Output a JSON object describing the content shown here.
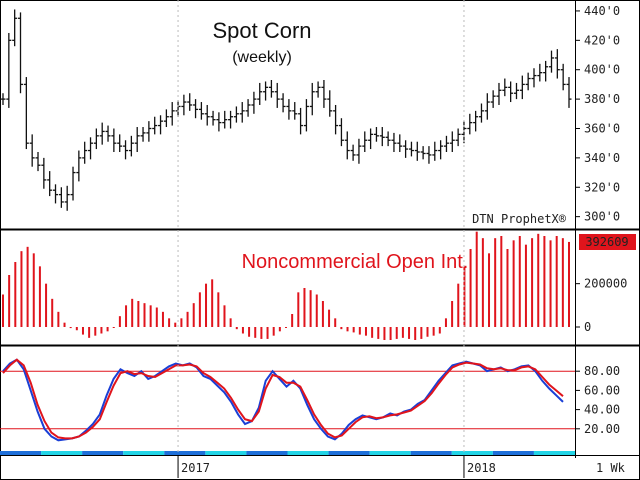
{
  "chart_data": [
    {
      "type": "ohlc",
      "title": "Spot Corn",
      "subtitle": "(weekly)",
      "watermark": "DTN ProphetX®",
      "ylim": [
        295,
        442
      ],
      "y_ticks": [
        {
          "value": 300,
          "label": "300'0"
        },
        {
          "value": 320,
          "label": "320'0"
        },
        {
          "value": 340,
          "label": "340'0"
        },
        {
          "value": 360,
          "label": "360'0"
        },
        {
          "value": 380,
          "label": "380'0"
        },
        {
          "value": 400,
          "label": "400'0"
        },
        {
          "value": 420,
          "label": "420'0"
        },
        {
          "value": 440,
          "label": "440'0"
        }
      ],
      "close_series": [
        380,
        420,
        435,
        390,
        350,
        340,
        335,
        325,
        318,
        315,
        310,
        315,
        330,
        340,
        345,
        350,
        355,
        358,
        355,
        350,
        348,
        345,
        350,
        355,
        357,
        360,
        362,
        365,
        368,
        372,
        375,
        378,
        376,
        373,
        370,
        368,
        366,
        364,
        366,
        368,
        370,
        372,
        376,
        380,
        385,
        388,
        385,
        380,
        375,
        372,
        370,
        362,
        375,
        385,
        388,
        380,
        372,
        362,
        352,
        345,
        342,
        348,
        352,
        356,
        355,
        354,
        352,
        350,
        348,
        346,
        345,
        344,
        343,
        342,
        345,
        348,
        350,
        352,
        356,
        360,
        364,
        368,
        372,
        378,
        382,
        386,
        388,
        384,
        386,
        390,
        394,
        396,
        398,
        402,
        408,
        400,
        390,
        380
      ],
      "color": "#111111"
    },
    {
      "type": "bar",
      "label": "Noncommercial Open Int.",
      "last_value_label": "392609",
      "ylim": [
        -60000,
        420000
      ],
      "y_ticks": [
        {
          "value": 200000,
          "label": "200000"
        },
        {
          "value": 0,
          "label": "0"
        }
      ],
      "values": [
        150000,
        240000,
        300000,
        350000,
        370000,
        340000,
        280000,
        200000,
        130000,
        70000,
        20000,
        -5000,
        -15000,
        -35000,
        -50000,
        -40000,
        -30000,
        -20000,
        0,
        50000,
        100000,
        130000,
        120000,
        110000,
        100000,
        90000,
        70000,
        40000,
        20000,
        40000,
        70000,
        110000,
        160000,
        200000,
        220000,
        160000,
        100000,
        40000,
        -10000,
        -30000,
        -45000,
        -50000,
        -55000,
        -55000,
        -40000,
        -20000,
        0,
        60000,
        160000,
        180000,
        170000,
        150000,
        120000,
        80000,
        40000,
        -10000,
        -20000,
        -25000,
        -35000,
        -40000,
        -50000,
        -55000,
        -60000,
        -60000,
        -55000,
        -50000,
        -55000,
        -60000,
        -55000,
        -45000,
        -40000,
        -30000,
        40000,
        120000,
        200000,
        280000,
        360000,
        440000,
        410000,
        340000,
        410000,
        420000,
        360000,
        400000,
        420000,
        380000,
        410000,
        430000,
        420000,
        400000,
        420000,
        410000,
        392609
      ],
      "color": "#e0141c"
    },
    {
      "type": "line",
      "ylim": [
        0,
        100
      ],
      "y_ticks": [
        {
          "value": 80,
          "label": "80.00"
        },
        {
          "value": 60,
          "label": "60.00"
        },
        {
          "value": 40,
          "label": "40.00"
        },
        {
          "value": 20,
          "label": "20.00"
        }
      ],
      "reference_lines": [
        80,
        20
      ],
      "series": [
        {
          "color": "#1a3fd6",
          "values": [
            80,
            88,
            92,
            82,
            60,
            38,
            20,
            12,
            8,
            9,
            10,
            12,
            18,
            25,
            35,
            55,
            72,
            82,
            78,
            75,
            80,
            72,
            75,
            80,
            85,
            88,
            86,
            88,
            84,
            75,
            72,
            65,
            58,
            48,
            35,
            25,
            28,
            42,
            70,
            80,
            72,
            64,
            70,
            62,
            45,
            30,
            20,
            12,
            9,
            15,
            24,
            30,
            34,
            32,
            30,
            32,
            36,
            34,
            38,
            40,
            46,
            50,
            60,
            70,
            78,
            86,
            88,
            90,
            88,
            86,
            80,
            82,
            84,
            80,
            82,
            85,
            86,
            80,
            70,
            62,
            55,
            48
          ]
        },
        {
          "color": "#e0141c",
          "values": [
            78,
            86,
            92,
            86,
            68,
            45,
            28,
            16,
            11,
            10,
            10,
            12,
            16,
            22,
            30,
            48,
            65,
            78,
            80,
            77,
            78,
            75,
            74,
            78,
            82,
            86,
            86,
            87,
            85,
            78,
            74,
            68,
            62,
            52,
            40,
            30,
            28,
            38,
            62,
            76,
            74,
            68,
            68,
            64,
            50,
            35,
            24,
            15,
            11,
            13,
            20,
            27,
            32,
            33,
            31,
            32,
            34,
            35,
            37,
            39,
            44,
            49,
            57,
            67,
            76,
            84,
            87,
            89,
            88,
            87,
            83,
            82,
            83,
            81,
            81,
            84,
            85,
            82,
            74,
            66,
            60,
            54
          ]
        }
      ]
    }
  ],
  "x_axis": {
    "labels": [
      {
        "text": "2017",
        "week": 30
      },
      {
        "text": "2018",
        "week": 79
      }
    ],
    "weeks": 98,
    "unit_label": "1 Wk"
  }
}
